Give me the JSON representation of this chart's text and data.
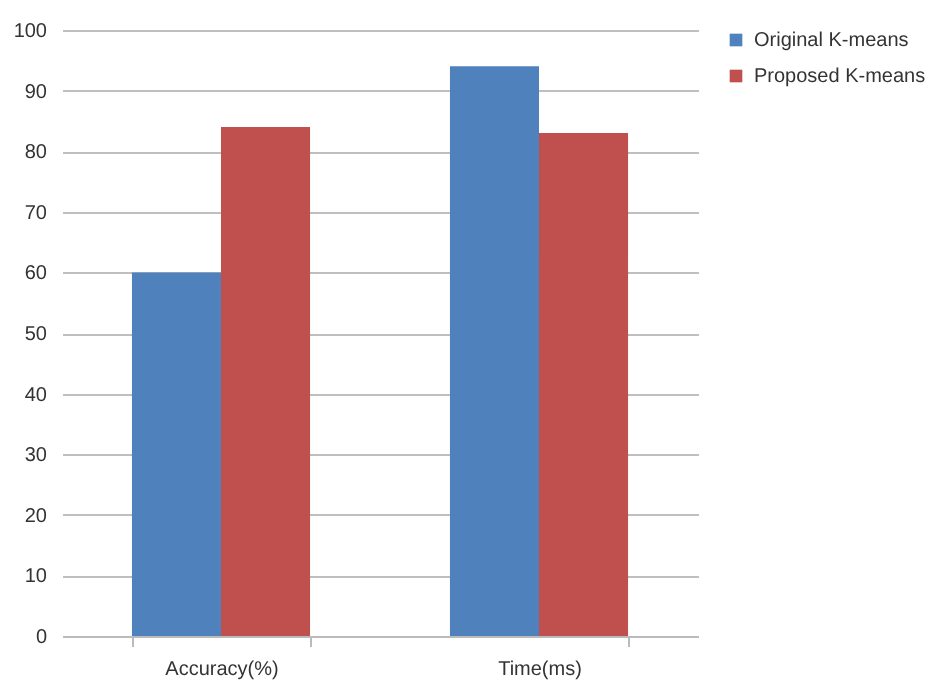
{
  "chart_data": {
    "type": "bar",
    "categories": [
      "Accuracy(%)",
      "Time(ms)"
    ],
    "series": [
      {
        "name": "Original K-means",
        "color": "#4f81bd",
        "values": [
          60,
          94
        ]
      },
      {
        "name": "Proposed K-means",
        "color": "#c0504d",
        "values": [
          84,
          83
        ]
      }
    ],
    "ylim": [
      0,
      100
    ],
    "yticks": [
      0,
      10,
      20,
      30,
      40,
      50,
      60,
      70,
      80,
      90,
      100
    ],
    "grid": "y",
    "legend": "right"
  }
}
